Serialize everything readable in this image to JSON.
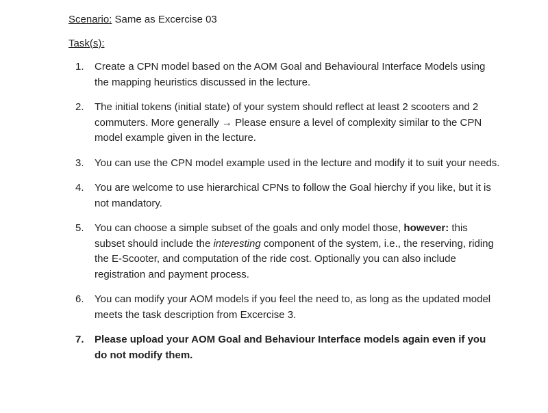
{
  "scenario": {
    "label": "Scenario:",
    "text": " Same as Excercise 03"
  },
  "tasks": {
    "label": "Task(s):"
  },
  "items": [
    {
      "bold_all": false,
      "segments": [
        {
          "text": "Create a CPN model based on the AOM Goal and Behavioural Interface Models using the mapping heuristics discussed in the lecture."
        }
      ]
    },
    {
      "bold_all": false,
      "segments": [
        {
          "text": "The initial tokens (initial state) of your system should reflect at least 2 scooters and 2 commuters. More generally "
        },
        {
          "text": "→",
          "cls": "arrow"
        },
        {
          "text": " Please ensure a level of complexity similar to the CPN model example given in the lecture."
        }
      ]
    },
    {
      "bold_all": false,
      "segments": [
        {
          "text": "You can use the CPN model example used in the lecture and modify it to suit your needs."
        }
      ]
    },
    {
      "bold_all": false,
      "segments": [
        {
          "text": "You are welcome to use hierarchical CPNs to follow the Goal hierchy if you like, but it is not mandatory."
        }
      ]
    },
    {
      "bold_all": false,
      "segments": [
        {
          "text": "You can choose a simple subset of the goals and only model those, "
        },
        {
          "text": "however:",
          "cls": "bold"
        },
        {
          "text": " this subset should include the "
        },
        {
          "text": "interesting",
          "cls": "italic"
        },
        {
          "text": " component of the system, i.e., the reserving, riding the E-Scooter, and computation of the ride cost. Optionally you can also include registration and payment process."
        }
      ]
    },
    {
      "bold_all": false,
      "segments": [
        {
          "text": "You can modify your AOM models if you feel the need to, as long as the updated model meets the task description from Excercise 3."
        }
      ]
    },
    {
      "bold_all": true,
      "segments": [
        {
          "text": "Please upload your AOM Goal and Behaviour Interface models again even if you do not modify them."
        }
      ]
    }
  ]
}
